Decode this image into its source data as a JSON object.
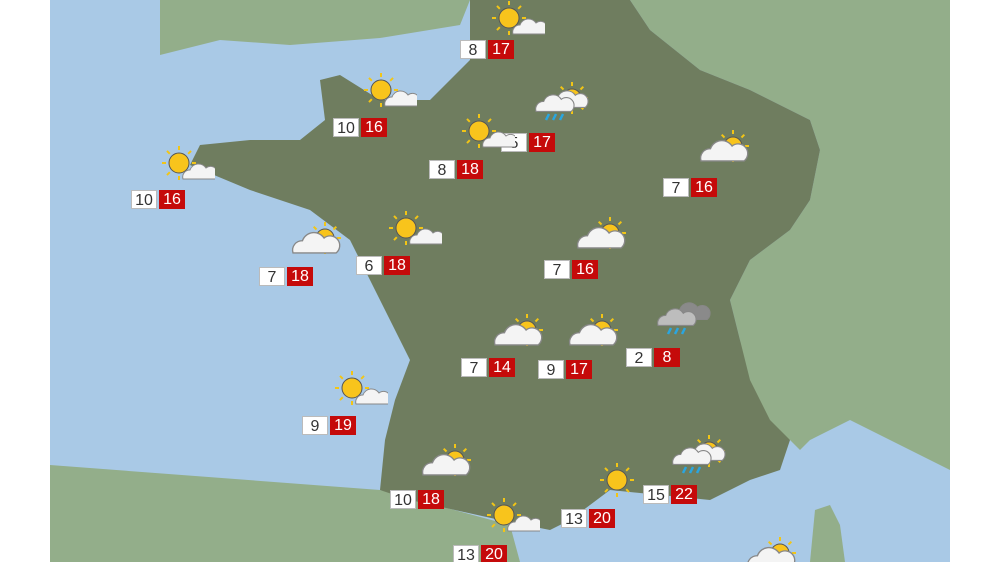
{
  "colors": {
    "sea": "#a9c9e6",
    "france": "#6f7d5f",
    "neighbors": "#93ae8a",
    "max_badge": "#c50a0a",
    "min_badge": "#ffffff"
  },
  "stations": [
    {
      "icon": "sun-small-cloud",
      "min": "8",
      "max": "17"
    },
    {
      "icon": "sun-small-cloud",
      "min": "10",
      "max": "16"
    },
    {
      "icon": "showers-sun",
      "min": "5",
      "max": "17"
    },
    {
      "icon": "sun-small-cloud",
      "min": "8",
      "max": "18"
    },
    {
      "icon": "sun-small-cloud",
      "min": "10",
      "max": "16"
    },
    {
      "icon": "cloud-sun",
      "min": "7",
      "max": "16"
    },
    {
      "icon": "cloud-sun",
      "min": "7",
      "max": "18"
    },
    {
      "icon": "sun-small-cloud",
      "min": "6",
      "max": "18"
    },
    {
      "icon": "cloud-sun",
      "min": "7",
      "max": "16"
    },
    {
      "icon": "rain",
      "min": "2",
      "max": "8"
    },
    {
      "icon": "cloud-sun",
      "min": "7",
      "max": "14"
    },
    {
      "icon": "cloud-sun",
      "min": "9",
      "max": "17"
    },
    {
      "icon": "sun-small-cloud",
      "min": "9",
      "max": "19"
    },
    {
      "icon": "cloud-sun",
      "min": "10",
      "max": "18"
    },
    {
      "icon": "showers-sun",
      "min": "15",
      "max": "22"
    },
    {
      "icon": "sun",
      "min": "13",
      "max": "20"
    },
    {
      "icon": "sun-small-cloud",
      "min": "13",
      "max": "20"
    },
    {
      "icon": "cloud-sun"
    }
  ]
}
